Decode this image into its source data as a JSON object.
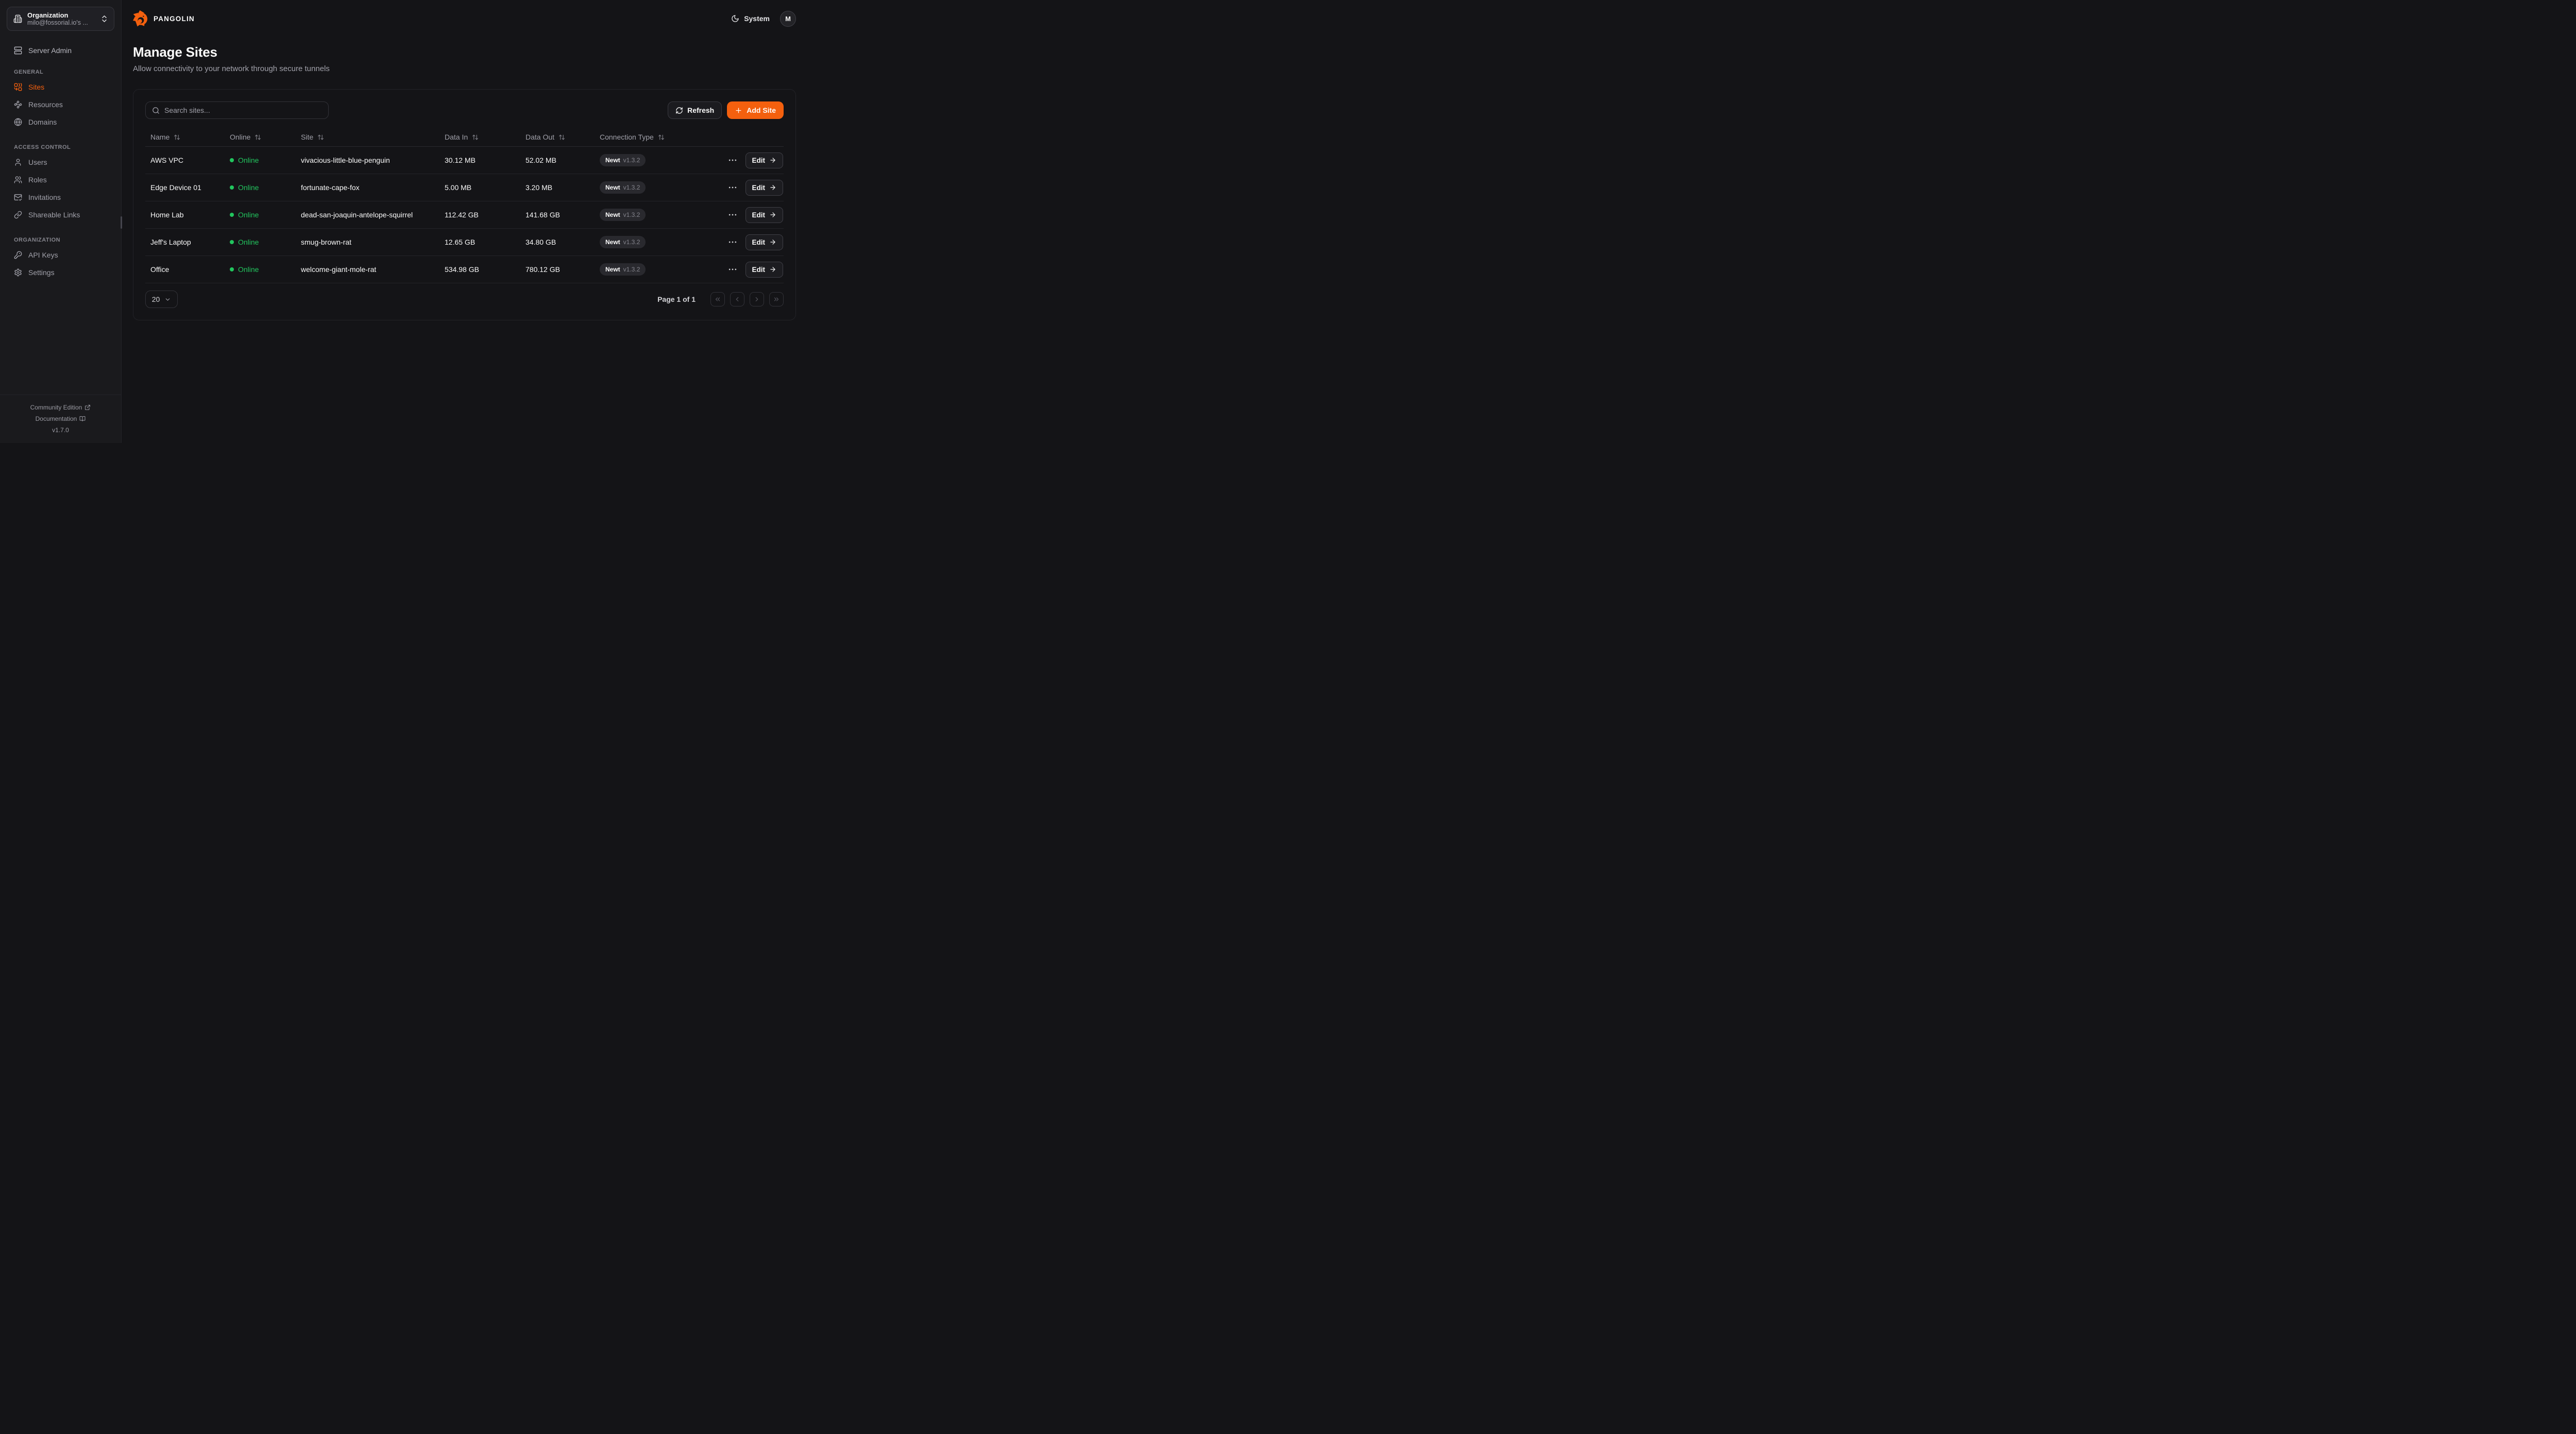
{
  "app": {
    "brand": "PANGOLIN",
    "theme_label": "System",
    "avatar_initial": "M"
  },
  "sidebar": {
    "org": {
      "label": "Organization",
      "value": "milo@fossorial.io's ..."
    },
    "server_admin": "Server Admin",
    "sections": [
      {
        "title": "GENERAL",
        "items": [
          {
            "label": "Sites",
            "active": true
          },
          {
            "label": "Resources"
          },
          {
            "label": "Domains"
          }
        ]
      },
      {
        "title": "ACCESS CONTROL",
        "items": [
          {
            "label": "Users"
          },
          {
            "label": "Roles"
          },
          {
            "label": "Invitations"
          },
          {
            "label": "Shareable Links"
          }
        ]
      },
      {
        "title": "ORGANIZATION",
        "items": [
          {
            "label": "API Keys"
          },
          {
            "label": "Settings"
          }
        ]
      }
    ],
    "footer": {
      "community": "Community Edition",
      "documentation": "Documentation",
      "version": "v1.7.0"
    }
  },
  "page": {
    "title": "Manage Sites",
    "subtitle": "Allow connectivity to your network through secure tunnels"
  },
  "toolbar": {
    "search_placeholder": "Search sites...",
    "refresh": "Refresh",
    "add_site": "Add Site"
  },
  "table": {
    "columns": [
      "Name",
      "Online",
      "Site",
      "Data In",
      "Data Out",
      "Connection Type"
    ],
    "edit_label": "Edit",
    "rows": [
      {
        "name": "AWS VPC",
        "status": "Online",
        "site": "vivacious-little-blue-penguin",
        "data_in": "30.12 MB",
        "data_out": "52.02 MB",
        "connection": {
          "client": "Newt",
          "version": "v1.3.2"
        }
      },
      {
        "name": "Edge Device 01",
        "status": "Online",
        "site": "fortunate-cape-fox",
        "data_in": "5.00 MB",
        "data_out": "3.20 MB",
        "connection": {
          "client": "Newt",
          "version": "v1.3.2"
        }
      },
      {
        "name": "Home Lab",
        "status": "Online",
        "site": "dead-san-joaquin-antelope-squirrel",
        "data_in": "112.42 GB",
        "data_out": "141.68 GB",
        "connection": {
          "client": "Newt",
          "version": "v1.3.2"
        }
      },
      {
        "name": "Jeff's Laptop",
        "status": "Online",
        "site": "smug-brown-rat",
        "data_in": "12.65 GB",
        "data_out": "34.80 GB",
        "connection": {
          "client": "Newt",
          "version": "v1.3.2"
        }
      },
      {
        "name": "Office",
        "status": "Online",
        "site": "welcome-giant-mole-rat",
        "data_in": "534.98 GB",
        "data_out": "780.12 GB",
        "connection": {
          "client": "Newt",
          "version": "v1.3.2"
        }
      }
    ]
  },
  "pagination": {
    "page_size": "20",
    "status": "Page 1 of 1"
  },
  "colors": {
    "accent": "#F4600E",
    "online": "#22C55E"
  }
}
